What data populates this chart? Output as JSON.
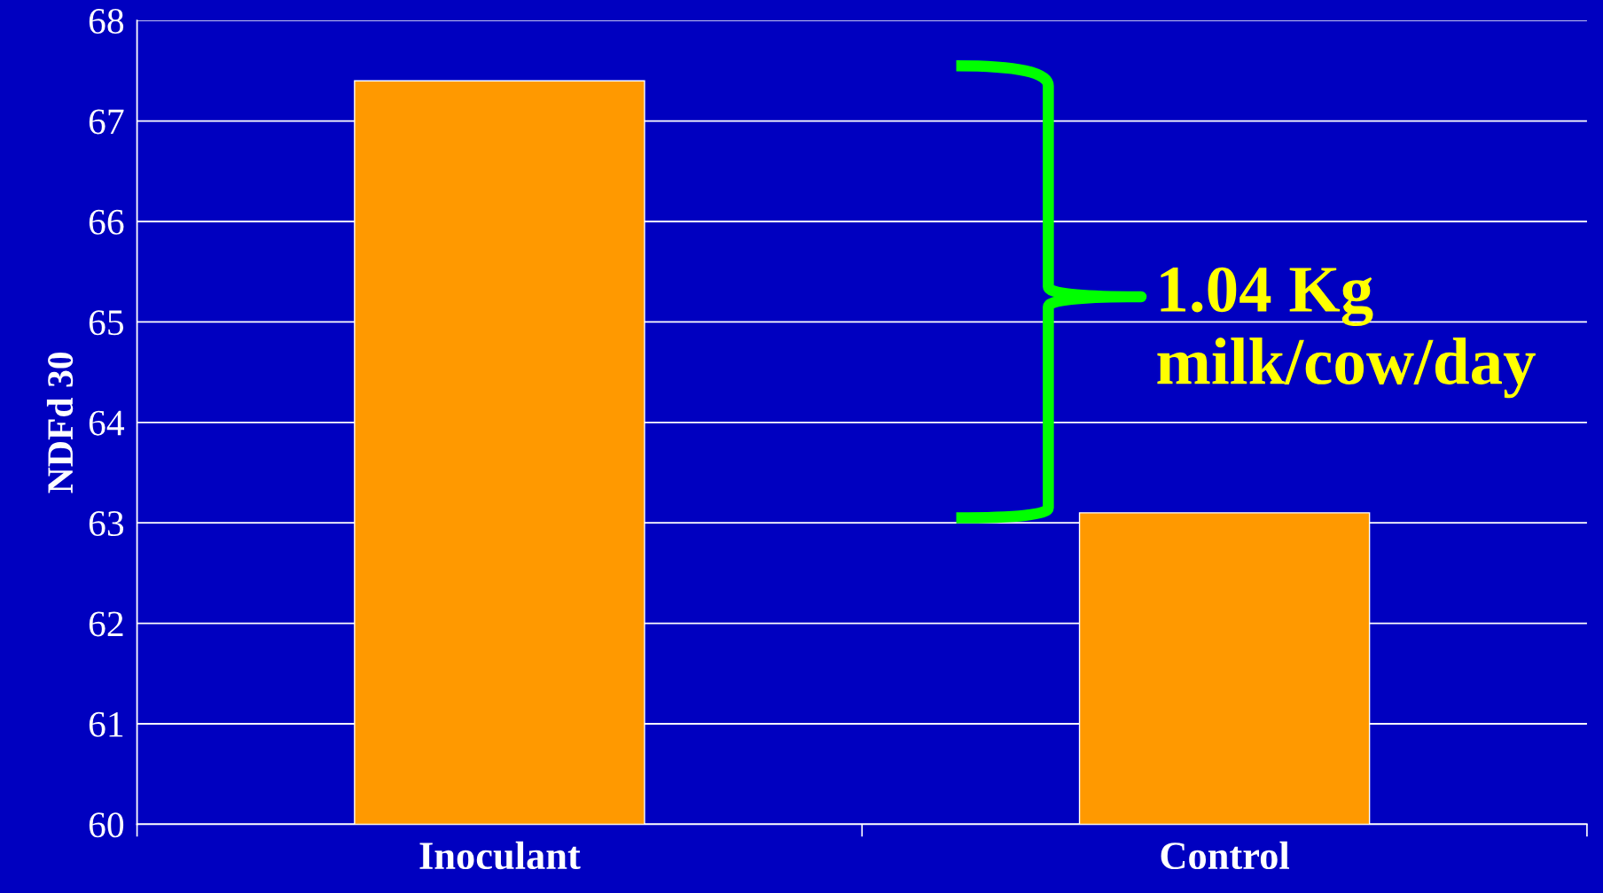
{
  "chart_data": {
    "type": "bar",
    "ylabel": "NDFd 30",
    "categories": [
      "Inoculant",
      "Control"
    ],
    "values": [
      67.4,
      63.1
    ],
    "color": "#ff9900",
    "ylim": [
      60,
      68
    ],
    "yticks": [
      60,
      61,
      62,
      63,
      64,
      65,
      66,
      67,
      68
    ],
    "grid": "y",
    "annotations": [
      "1.04 Kg\nmilk/cow/day"
    ]
  }
}
